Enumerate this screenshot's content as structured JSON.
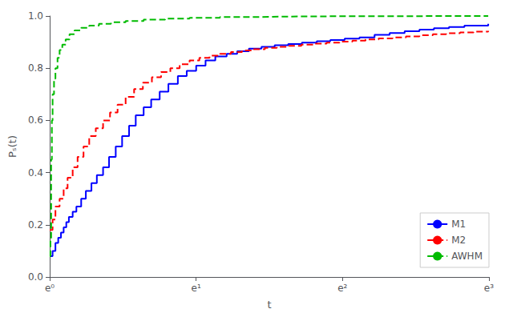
{
  "chart_data": {
    "type": "step",
    "xlabel": "t",
    "ylabel": "Pₛ(t)",
    "log": "x",
    "grid": false,
    "legend": "lower right",
    "xlim": [
      1.0,
      20.1
    ],
    "ylim": [
      0.0,
      1.0
    ],
    "xticks": [
      {
        "value": 1.0,
        "label": "e⁰"
      },
      {
        "value": 2.718281828459045,
        "label": "e¹"
      },
      {
        "value": 7.38905609893065,
        "label": "e²"
      },
      {
        "value": 20.085536923187668,
        "label": "e³"
      }
    ],
    "yticks": [
      {
        "value": 0.0,
        "label": "0.0"
      },
      0.2,
      0.4,
      0.6,
      0.8,
      {
        "value": 1.0,
        "label": "1.0"
      }
    ],
    "series": [
      {
        "name": "M1",
        "color": "#0000ff",
        "line_style": "solid",
        "x": [
          1.0,
          1.02,
          1.04,
          1.06,
          1.08,
          1.1,
          1.12,
          1.14,
          1.17,
          1.2,
          1.24,
          1.28,
          1.33,
          1.38,
          1.44,
          1.5,
          1.57,
          1.64,
          1.72,
          1.8,
          1.9,
          2.0,
          2.12,
          2.25,
          2.4,
          2.55,
          2.72,
          2.9,
          3.1,
          3.35,
          3.6,
          3.9,
          4.25,
          4.65,
          5.1,
          5.6,
          6.2,
          6.8,
          7.5,
          8.3,
          9.2,
          10.2,
          11.3,
          12.5,
          13.8,
          15.3,
          17.0,
          20.0
        ],
        "values": [
          0.08,
          0.1,
          0.13,
          0.15,
          0.17,
          0.19,
          0.21,
          0.23,
          0.25,
          0.27,
          0.3,
          0.33,
          0.36,
          0.39,
          0.42,
          0.46,
          0.5,
          0.54,
          0.58,
          0.62,
          0.65,
          0.68,
          0.71,
          0.74,
          0.77,
          0.79,
          0.81,
          0.83,
          0.845,
          0.855,
          0.865,
          0.875,
          0.882,
          0.888,
          0.893,
          0.898,
          0.903,
          0.908,
          0.913,
          0.918,
          0.928,
          0.935,
          0.942,
          0.948,
          0.953,
          0.958,
          0.963,
          0.97
        ]
      },
      {
        "name": "M2",
        "color": "#ff0000",
        "line_style": "dashed",
        "x": [
          1.0,
          1.02,
          1.04,
          1.07,
          1.1,
          1.13,
          1.17,
          1.21,
          1.26,
          1.31,
          1.37,
          1.44,
          1.51,
          1.59,
          1.68,
          1.78,
          1.89,
          2.01,
          2.14,
          2.28,
          2.43,
          2.6,
          2.78,
          2.98,
          3.2,
          3.45,
          3.72,
          4.02,
          4.35,
          4.72,
          5.13,
          5.58,
          6.08,
          6.63,
          7.24,
          7.91,
          8.65,
          9.46,
          10.4,
          11.4,
          12.5,
          13.7,
          15.0,
          16.5,
          18.1,
          20.0
        ],
        "values": [
          0.18,
          0.22,
          0.27,
          0.3,
          0.34,
          0.38,
          0.42,
          0.46,
          0.5,
          0.54,
          0.57,
          0.6,
          0.63,
          0.66,
          0.69,
          0.72,
          0.745,
          0.765,
          0.785,
          0.8,
          0.815,
          0.83,
          0.84,
          0.848,
          0.855,
          0.862,
          0.868,
          0.873,
          0.878,
          0.882,
          0.886,
          0.89,
          0.894,
          0.898,
          0.902,
          0.906,
          0.91,
          0.914,
          0.918,
          0.922,
          0.926,
          0.93,
          0.934,
          0.937,
          0.94,
          0.943
        ]
      },
      {
        "name": "AWHM",
        "color": "#00bb00",
        "line_style": "dashed",
        "x": [
          1.0,
          1.005,
          1.01,
          1.015,
          1.02,
          1.03,
          1.04,
          1.055,
          1.07,
          1.09,
          1.115,
          1.145,
          1.185,
          1.24,
          1.31,
          1.4,
          1.52,
          1.68,
          1.9,
          2.2,
          2.6,
          3.2,
          4.0,
          5.2,
          7.0,
          10.0,
          15.0,
          20.0
        ],
        "values": [
          0.08,
          0.14,
          0.45,
          0.6,
          0.7,
          0.76,
          0.8,
          0.84,
          0.87,
          0.89,
          0.91,
          0.93,
          0.945,
          0.955,
          0.963,
          0.97,
          0.976,
          0.981,
          0.986,
          0.99,
          0.993,
          0.996,
          0.998,
          0.999,
          0.999,
          1.0,
          1.0,
          1.0
        ]
      }
    ]
  }
}
